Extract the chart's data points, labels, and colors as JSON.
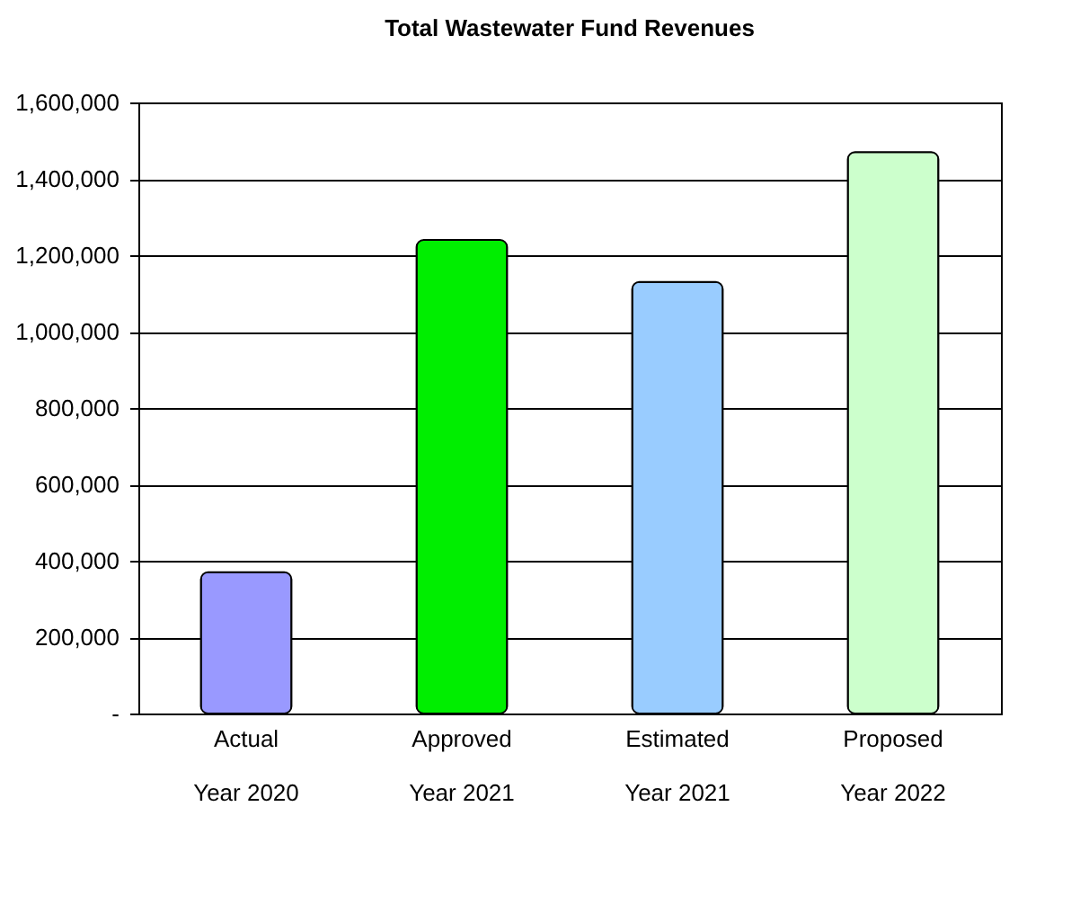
{
  "chart_data": {
    "type": "bar",
    "title": "Total Wastewater Fund Revenues",
    "categories": [
      "Actual\nYear 2020",
      "Approved\nYear 2021",
      "Estimated\nYear 2021",
      "Proposed\nYear 2022"
    ],
    "values": [
      370000,
      1240000,
      1130000,
      1470000
    ],
    "colors": [
      "#9999ff",
      "#00ee00",
      "#99ccff",
      "#ccffcc"
    ],
    "ylim": [
      0,
      1600000
    ],
    "yticks": [
      {
        "value": 0,
        "label": "-"
      },
      {
        "value": 200000,
        "label": "200,000"
      },
      {
        "value": 400000,
        "label": "400,000"
      },
      {
        "value": 600000,
        "label": "600,000"
      },
      {
        "value": 800000,
        "label": "800,000"
      },
      {
        "value": 1000000,
        "label": "1,000,000"
      },
      {
        "value": 1200000,
        "label": "1,200,000"
      },
      {
        "value": 1400000,
        "label": "1,400,000"
      },
      {
        "value": 1600000,
        "label": "1,600,000"
      }
    ],
    "grid": "y"
  }
}
